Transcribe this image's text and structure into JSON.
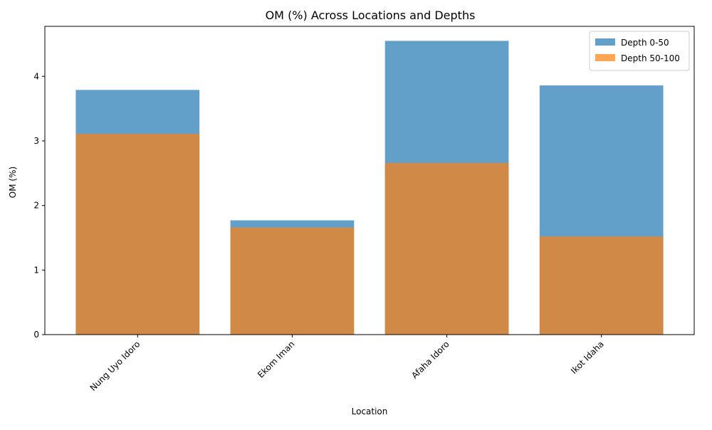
{
  "chart_data": {
    "type": "bar",
    "title": "OM (%) Across Locations and Depths",
    "xlabel": "Location",
    "ylabel": "OM (%)",
    "categories": [
      "Nung Uyo Idoro",
      "Ekom Iman",
      "Afaha Idoro",
      "Ikot Idaha"
    ],
    "series": [
      {
        "name": "Depth 0-50",
        "values": [
          3.79,
          1.77,
          4.55,
          3.86
        ],
        "color": "#1f77b4",
        "opacity": 0.7
      },
      {
        "name": "Depth 50-100",
        "values": [
          3.11,
          1.66,
          2.66,
          1.52
        ],
        "color": "#ff7f0e",
        "opacity": 0.7
      }
    ],
    "ylim": [
      0,
      4.775
    ],
    "yticks": [
      0,
      1,
      2,
      3,
      4
    ],
    "overlay": true,
    "grid": false,
    "legend_position": "top-right",
    "xtick_rotation": 45
  }
}
